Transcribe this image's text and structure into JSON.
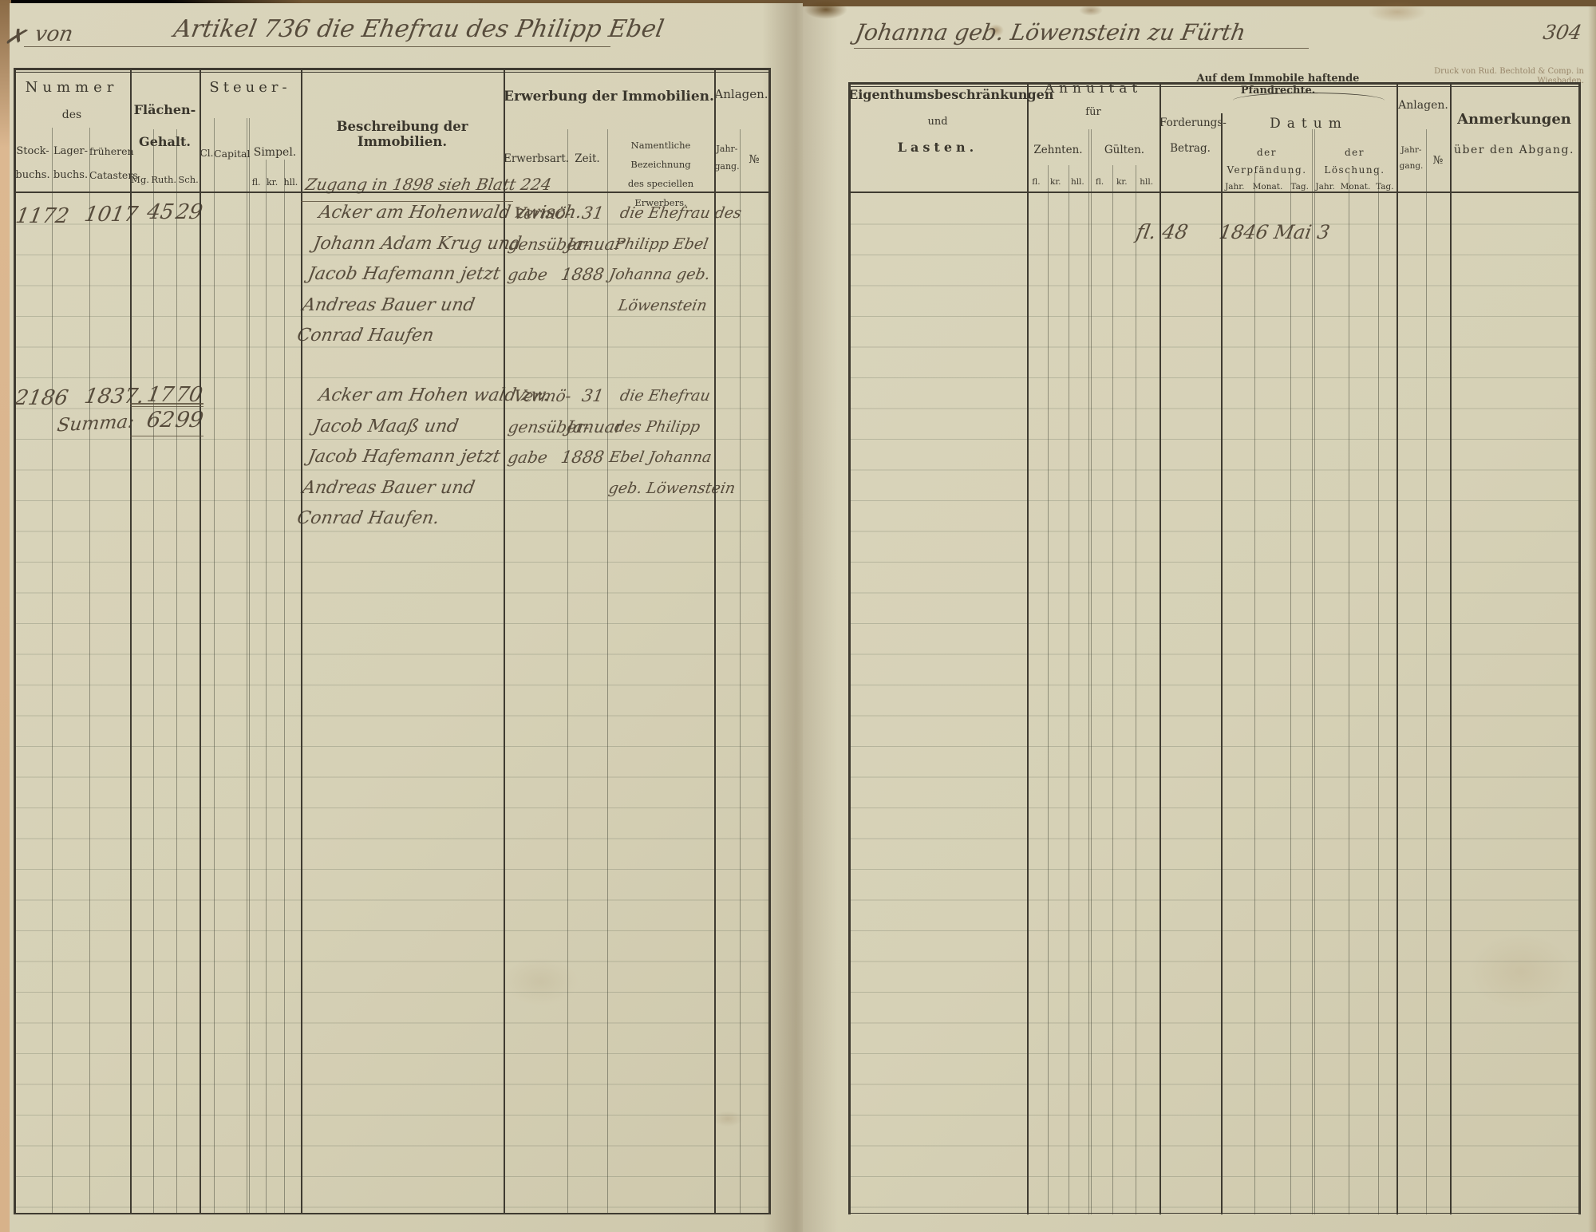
{
  "script_header": {
    "corner_mark": "✗",
    "left_prefix": "von",
    "left_title": "Artikel 736 die Ehefrau des Philipp Ebel",
    "right_title": "Johanna geb. Löwenstein zu Fürth",
    "page_number": "304"
  },
  "imprint": "Druck von Rud. Bechtold & Comp. in Wiesbaden.",
  "lp": {
    "h": {
      "nummer": "Nummer",
      "des": "des",
      "stockbuchs": "Stock-\nbuchs.",
      "lagerbuchs": "Lager-\nbuchs.",
      "cataster": "früheren\nCatasters",
      "flaechen": "Flächen-\nGehalt.",
      "mg": "Mg.",
      "ruth": "Ruth.",
      "sch": "Sch.",
      "steuer": "Steuer-",
      "cl": "Cl.",
      "capital": "Capital",
      "simpel": "Simpel.",
      "fl": "fl.",
      "kr": "kr.",
      "hll": "hll.",
      "beschreibung": "Beschreibung der Immobilien.",
      "erwerbung": "Erwerbung der Immobilien.",
      "erwerbsart": "Erwerbsart.",
      "zeit": "Zeit.",
      "namentliche": "Namentliche Bezeichnung\ndes speciellen Erwerbers.",
      "anlagen": "Anlagen.",
      "jahrgang": "Jahr-\ngang.",
      "nr": "№"
    },
    "note": "Zugang in 1898 sieh Blatt 224",
    "rows": [
      {
        "stockbuch": "1172",
        "cataster": "1017",
        "mg": "45",
        "ruth": "29",
        "beschreibung": "Acker am Hohenwald zwisch.\nJohann Adam Krug und\nJacob Hafemann jetzt\nAndreas Bauer und\nConrad Haufen",
        "erwerbsart": "Vermö-\ngensüber-\n gabe",
        "zeit": "31\nJanuar\n1888",
        "erwerber": "die Ehefrau des\nPhilipp Ebel\nJohanna geb.\n   Löwenstein"
      },
      {
        "stockbuch": "2186",
        "summa": "Summa:",
        "cataster": "1837.",
        "mg": "17",
        "ruth": "70",
        "summe_mg": "62",
        "summe_ruth": "99",
        "beschreibung": "Acker am Hohen wald zw.\nJacob Maaß und\nJacob Hafemann jetzt\nAndreas Bauer und\nConrad Haufen.",
        "erwerbsart": "Vermö-\ngensüber-\n gabe",
        "zeit": "31\nJanuar\n1888",
        "erwerber": "die Ehefrau\ndes Philipp\nEbel Johanna\n geb. Löwenstein"
      }
    ]
  },
  "rp": {
    "h": {
      "eigenthum1": "Eigenthumsbeschränkungen",
      "eigenthum2": "und",
      "eigenthum3": "Lasten.",
      "annuitaet": "Annuität",
      "fuer": "für",
      "zehnten": "Zehnten.",
      "guelten": "Gülten.",
      "fl": "fl.",
      "kr": "kr.",
      "hll": "hll.",
      "pfandrechte": "Auf dem Immobile haftende Pfandrechte.",
      "forderungs": "Forderungs-\nBetrag.",
      "datum": "Datum",
      "verpfaendung": "der\nVerpfändung.",
      "loeschung": "der\nLöschung.",
      "jahr": "Jahr.",
      "monat": "Monat.",
      "tag": "Tag.",
      "anlagen": "Anlagen.",
      "jahrgang": "Jahr-\ngang.",
      "nr": "№",
      "anmerkungen1": "Anmerkungen",
      "anmerkungen2": "über den Abgang."
    },
    "rows": [
      {
        "forderungs_betrag": "fl. 48",
        "verpfaendung_datum": "1846 Mai 3"
      }
    ]
  }
}
